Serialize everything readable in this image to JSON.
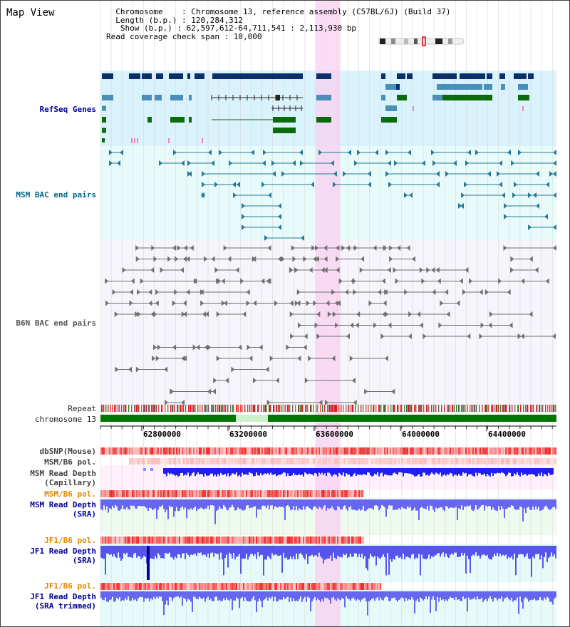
{
  "header": {
    "title": "Map View",
    "lines": [
      "  Chromosome    : Chromosome 13, reference assembly (C57BL/6J) (Build 37)",
      "  Length (b.p.) : 120,284,312",
      "   Show (b.p.) : 62,597,612-64,711,541 : 2,113,930 bp",
      "Read coverage check span : 10,000"
    ]
  },
  "tracks": {
    "refseq": "RefSeq Genes",
    "msm_bac": "MSM BAC end pairs",
    "b6n_bac": "B6N BAC end pairs",
    "repeat": "Repeat",
    "chromosome": "chromosome 13",
    "dbsnp": "dbSNP(Mouse)",
    "msm_b6_pol_1": "MSM/B6 pol.",
    "msm_depth_cap_1": "MSM Read Depth",
    "msm_depth_cap_2": "(Capillary)",
    "msm_b6_pol_2": "MSM/B6 pol.",
    "msm_depth_sra_1": "MSM Read Depth",
    "msm_depth_sra_2": "(SRA)",
    "jf1_b6_pol_1": "JF1/B6 pol.",
    "jf1_depth_1": "JF1 Read Depth",
    "jf1_depth_2": "(SRA)",
    "jf1_b6_pol_2": "JF1/B6 pol.",
    "jf1_trim_1": "JF1 Read Depth",
    "jf1_trim_2": "(SRA trimmed)"
  },
  "axis": {
    "ticks": [
      "62800000",
      "63200000",
      "63600000",
      "64000000",
      "64400000"
    ]
  },
  "colors": {
    "refseq_label": "#000099",
    "msm_label": "#006688",
    "b6n_label": "#555555",
    "pol_label": "#dd8800",
    "depth_label": "#000099",
    "highlight": "#f8d0f0",
    "chromosome": "#007700"
  }
}
